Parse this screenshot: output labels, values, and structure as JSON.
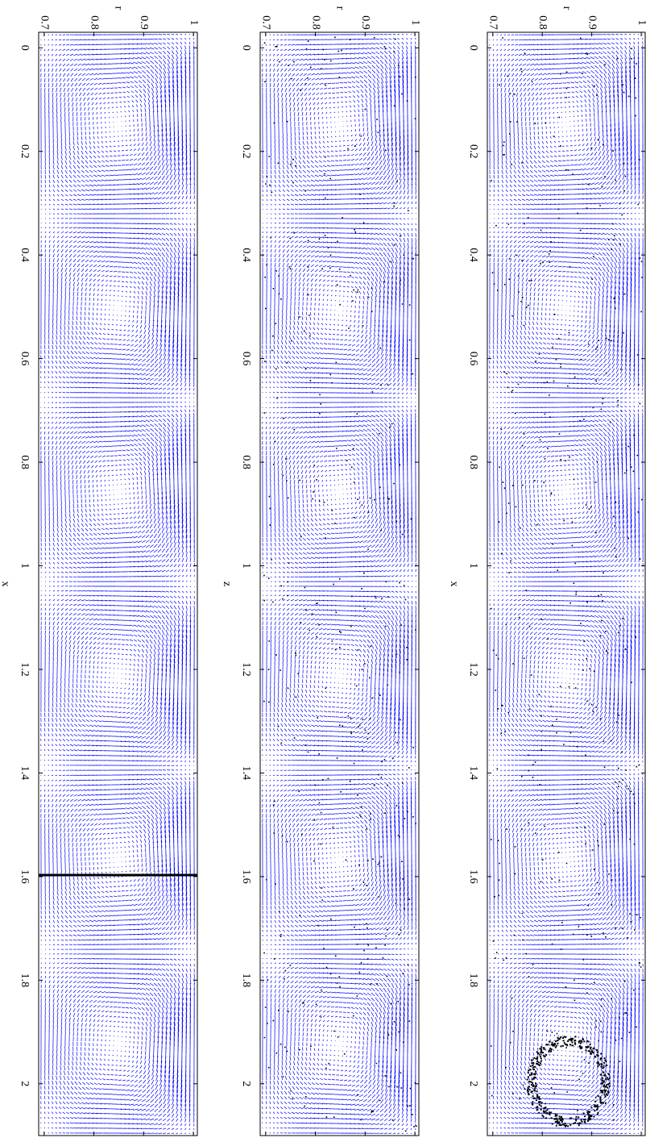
{
  "chart_data": [
    {
      "type": "quiver",
      "xlabel": "x",
      "ylabel": "r",
      "xlim": [
        -0.03,
        2.1
      ],
      "ylim": [
        0.689,
        1.008
      ],
      "xticks": [
        0,
        0.2,
        0.4,
        0.6,
        0.8,
        1,
        1.2,
        1.4,
        1.6,
        1.8,
        2
      ],
      "yticks": [
        0.7,
        0.8,
        0.9,
        1
      ],
      "color": "#0000ff"
    },
    {
      "type": "quiver",
      "xlabel": "z",
      "ylabel": "r",
      "xlim": [
        -0.03,
        2.1
      ],
      "ylim": [
        0.689,
        1.008
      ],
      "xticks": [
        0,
        0.2,
        0.4,
        0.6,
        0.8,
        1,
        1.2,
        1.4,
        1.6,
        1.8,
        2
      ],
      "yticks": [
        0.7,
        0.8,
        0.9,
        1
      ],
      "color": "#0000ff"
    },
    {
      "type": "quiver",
      "xlabel": "x",
      "ylabel": "r",
      "xlim": [
        -0.03,
        2.1
      ],
      "ylim": [
        0.689,
        1.008
      ],
      "xticks": [
        0,
        0.2,
        0.4,
        0.6,
        0.8,
        1,
        1.2,
        1.4,
        1.6,
        1.8,
        2
      ],
      "yticks": [
        0.7,
        0.8,
        0.9,
        1
      ],
      "color": "#0000ff"
    }
  ]
}
